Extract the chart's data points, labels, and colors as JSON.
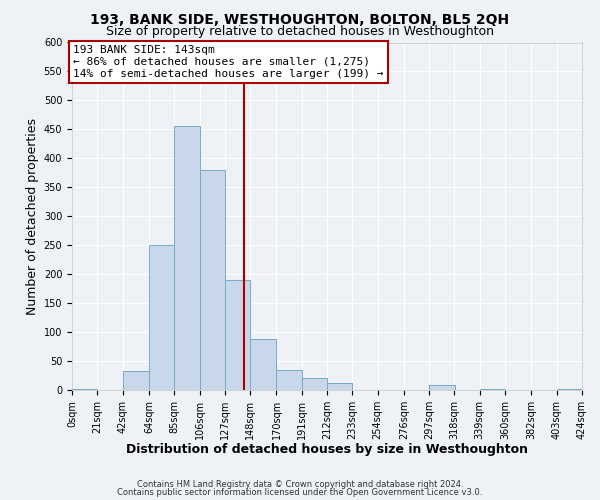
{
  "title": "193, BANK SIDE, WESTHOUGHTON, BOLTON, BL5 2QH",
  "subtitle": "Size of property relative to detached houses in Westhoughton",
  "xlabel": "Distribution of detached houses by size in Westhoughton",
  "ylabel": "Number of detached properties",
  "bar_color": "#c8d8ea",
  "bar_edge_color": "#7aaac8",
  "bin_edges": [
    0,
    21,
    42,
    64,
    85,
    106,
    127,
    148,
    170,
    191,
    212,
    233,
    254,
    276,
    297,
    318,
    339,
    360,
    382,
    403,
    424
  ],
  "bin_labels": [
    "0sqm",
    "21sqm",
    "42sqm",
    "64sqm",
    "85sqm",
    "106sqm",
    "127sqm",
    "148sqm",
    "170sqm",
    "191sqm",
    "212sqm",
    "233sqm",
    "254sqm",
    "276sqm",
    "297sqm",
    "318sqm",
    "339sqm",
    "360sqm",
    "382sqm",
    "403sqm",
    "424sqm"
  ],
  "bar_heights": [
    2,
    0,
    33,
    250,
    455,
    380,
    190,
    88,
    35,
    20,
    12,
    0,
    0,
    0,
    8,
    0,
    2,
    0,
    0,
    2
  ],
  "vline_x": 143,
  "vline_color": "#aa0000",
  "annotation_text": "193 BANK SIDE: 143sqm\n← 86% of detached houses are smaller (1,275)\n14% of semi-detached houses are larger (199) →",
  "annotation_box_color": "#ffffff",
  "annotation_box_edge": "#aa0000",
  "ylim": [
    0,
    600
  ],
  "yticks": [
    0,
    50,
    100,
    150,
    200,
    250,
    300,
    350,
    400,
    450,
    500,
    550,
    600
  ],
  "footer_line1": "Contains HM Land Registry data © Crown copyright and database right 2024.",
  "footer_line2": "Contains public sector information licensed under the Open Government Licence v3.0.",
  "background_color": "#eef2f6",
  "grid_color": "#ffffff",
  "title_fontsize": 10,
  "subtitle_fontsize": 9,
  "axis_label_fontsize": 9,
  "tick_fontsize": 7,
  "annotation_fontsize": 8,
  "footer_fontsize": 6
}
